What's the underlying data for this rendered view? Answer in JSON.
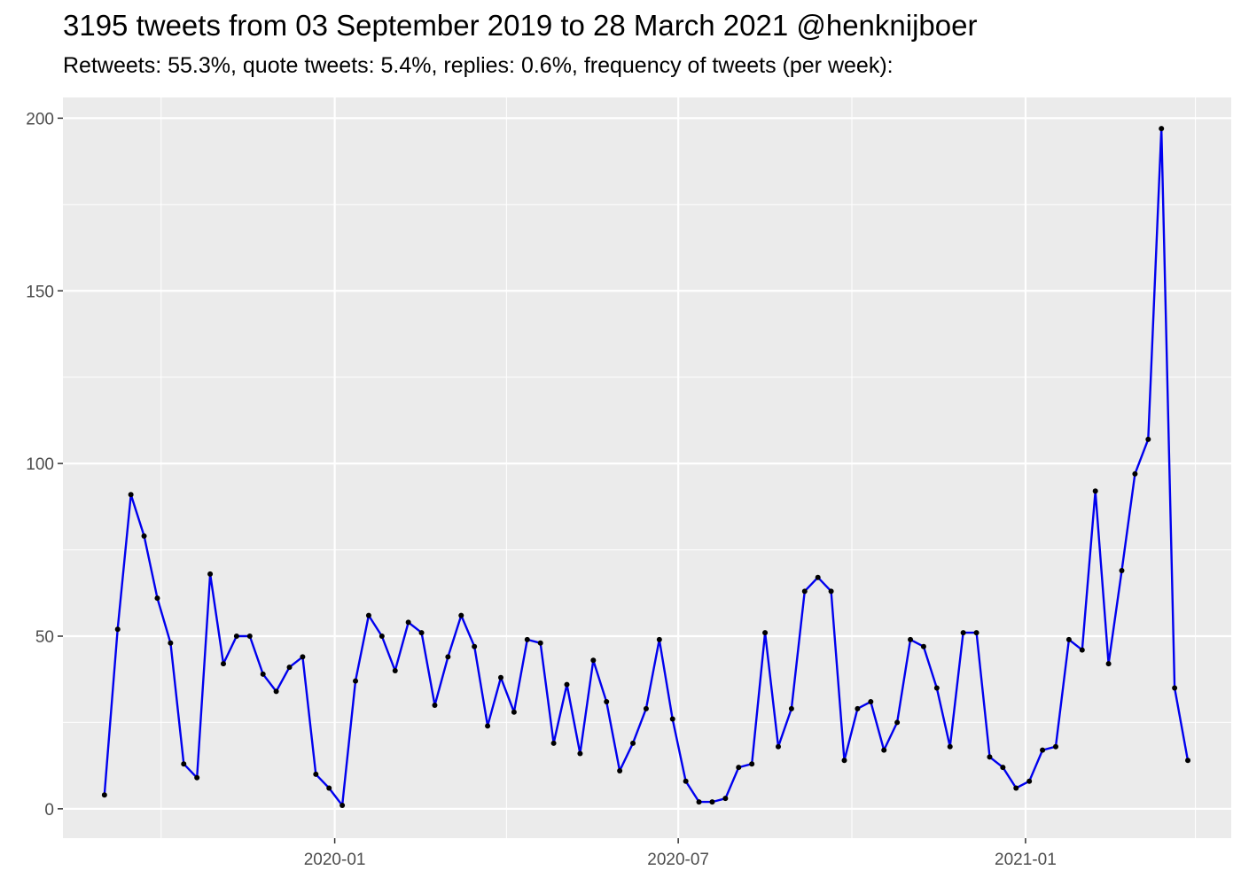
{
  "chart_data": {
    "type": "line",
    "title": "3195 tweets from 03 September 2019 to 28 March 2021 @henknijboer",
    "subtitle": "Retweets: 55.3%, quote tweets: 5.4%, replies: 0.6%, frequency of tweets (per week):",
    "xlabel": "",
    "ylabel": "",
    "x_axis_type": "date",
    "x_tick_labels": [
      {
        "date": "2020-01-01",
        "label": "2020-01"
      },
      {
        "date": "2020-07-01",
        "label": "2020-07"
      },
      {
        "date": "2021-01-01",
        "label": "2021-01"
      }
    ],
    "x_minor_breaks": [
      "2019-10-01",
      "2020-04-01",
      "2020-10-01",
      "2021-04-01"
    ],
    "xlim": [
      "2019-08-10",
      "2021-04-20"
    ],
    "y_ticks": [
      0,
      50,
      100,
      150,
      200
    ],
    "ylim": [
      -8.5,
      206
    ],
    "grid": true,
    "line_color": "#0000ee",
    "point_color": "#000000",
    "panel_background": "#ebebeb",
    "x": [
      "2019-09-01",
      "2019-09-08",
      "2019-09-15",
      "2019-09-22",
      "2019-09-29",
      "2019-10-06",
      "2019-10-13",
      "2019-10-20",
      "2019-10-27",
      "2019-11-03",
      "2019-11-10",
      "2019-11-17",
      "2019-11-24",
      "2019-12-01",
      "2019-12-08",
      "2019-12-15",
      "2019-12-22",
      "2019-12-29",
      "2020-01-05",
      "2020-01-12",
      "2020-01-19",
      "2020-01-26",
      "2020-02-02",
      "2020-02-09",
      "2020-02-16",
      "2020-02-23",
      "2020-03-01",
      "2020-03-08",
      "2020-03-15",
      "2020-03-22",
      "2020-03-29",
      "2020-04-05",
      "2020-04-12",
      "2020-04-19",
      "2020-04-26",
      "2020-05-03",
      "2020-05-10",
      "2020-05-17",
      "2020-05-24",
      "2020-05-31",
      "2020-06-07",
      "2020-06-14",
      "2020-06-21",
      "2020-06-28",
      "2020-07-05",
      "2020-07-12",
      "2020-07-19",
      "2020-07-26",
      "2020-08-02",
      "2020-08-09",
      "2020-08-16",
      "2020-08-23",
      "2020-08-30",
      "2020-09-06",
      "2020-09-13",
      "2020-09-20",
      "2020-09-27",
      "2020-10-04",
      "2020-10-11",
      "2020-10-18",
      "2020-10-25",
      "2020-11-01",
      "2020-11-08",
      "2020-11-15",
      "2020-11-22",
      "2020-11-29",
      "2020-12-06",
      "2020-12-13",
      "2020-12-20",
      "2020-12-27",
      "2021-01-03",
      "2021-01-10",
      "2021-01-17",
      "2021-01-24",
      "2021-01-31",
      "2021-02-07",
      "2021-02-14",
      "2021-02-21",
      "2021-02-28",
      "2021-03-07",
      "2021-03-14",
      "2021-03-21",
      "2021-03-28"
    ],
    "values": [
      4,
      52,
      91,
      79,
      61,
      48,
      13,
      9,
      68,
      42,
      50,
      50,
      39,
      34,
      41,
      44,
      10,
      6,
      1,
      37,
      56,
      50,
      40,
      54,
      51,
      30,
      44,
      56,
      47,
      24,
      38,
      28,
      49,
      48,
      19,
      36,
      16,
      43,
      31,
      11,
      19,
      29,
      49,
      26,
      8,
      2,
      2,
      3,
      12,
      13,
      51,
      18,
      29,
      63,
      67,
      63,
      14,
      29,
      31,
      17,
      25,
      49,
      47,
      35,
      18,
      51,
      51,
      15,
      12,
      6,
      8,
      17,
      18,
      49,
      46,
      92,
      42,
      69,
      97,
      107,
      197,
      35,
      14
    ]
  }
}
